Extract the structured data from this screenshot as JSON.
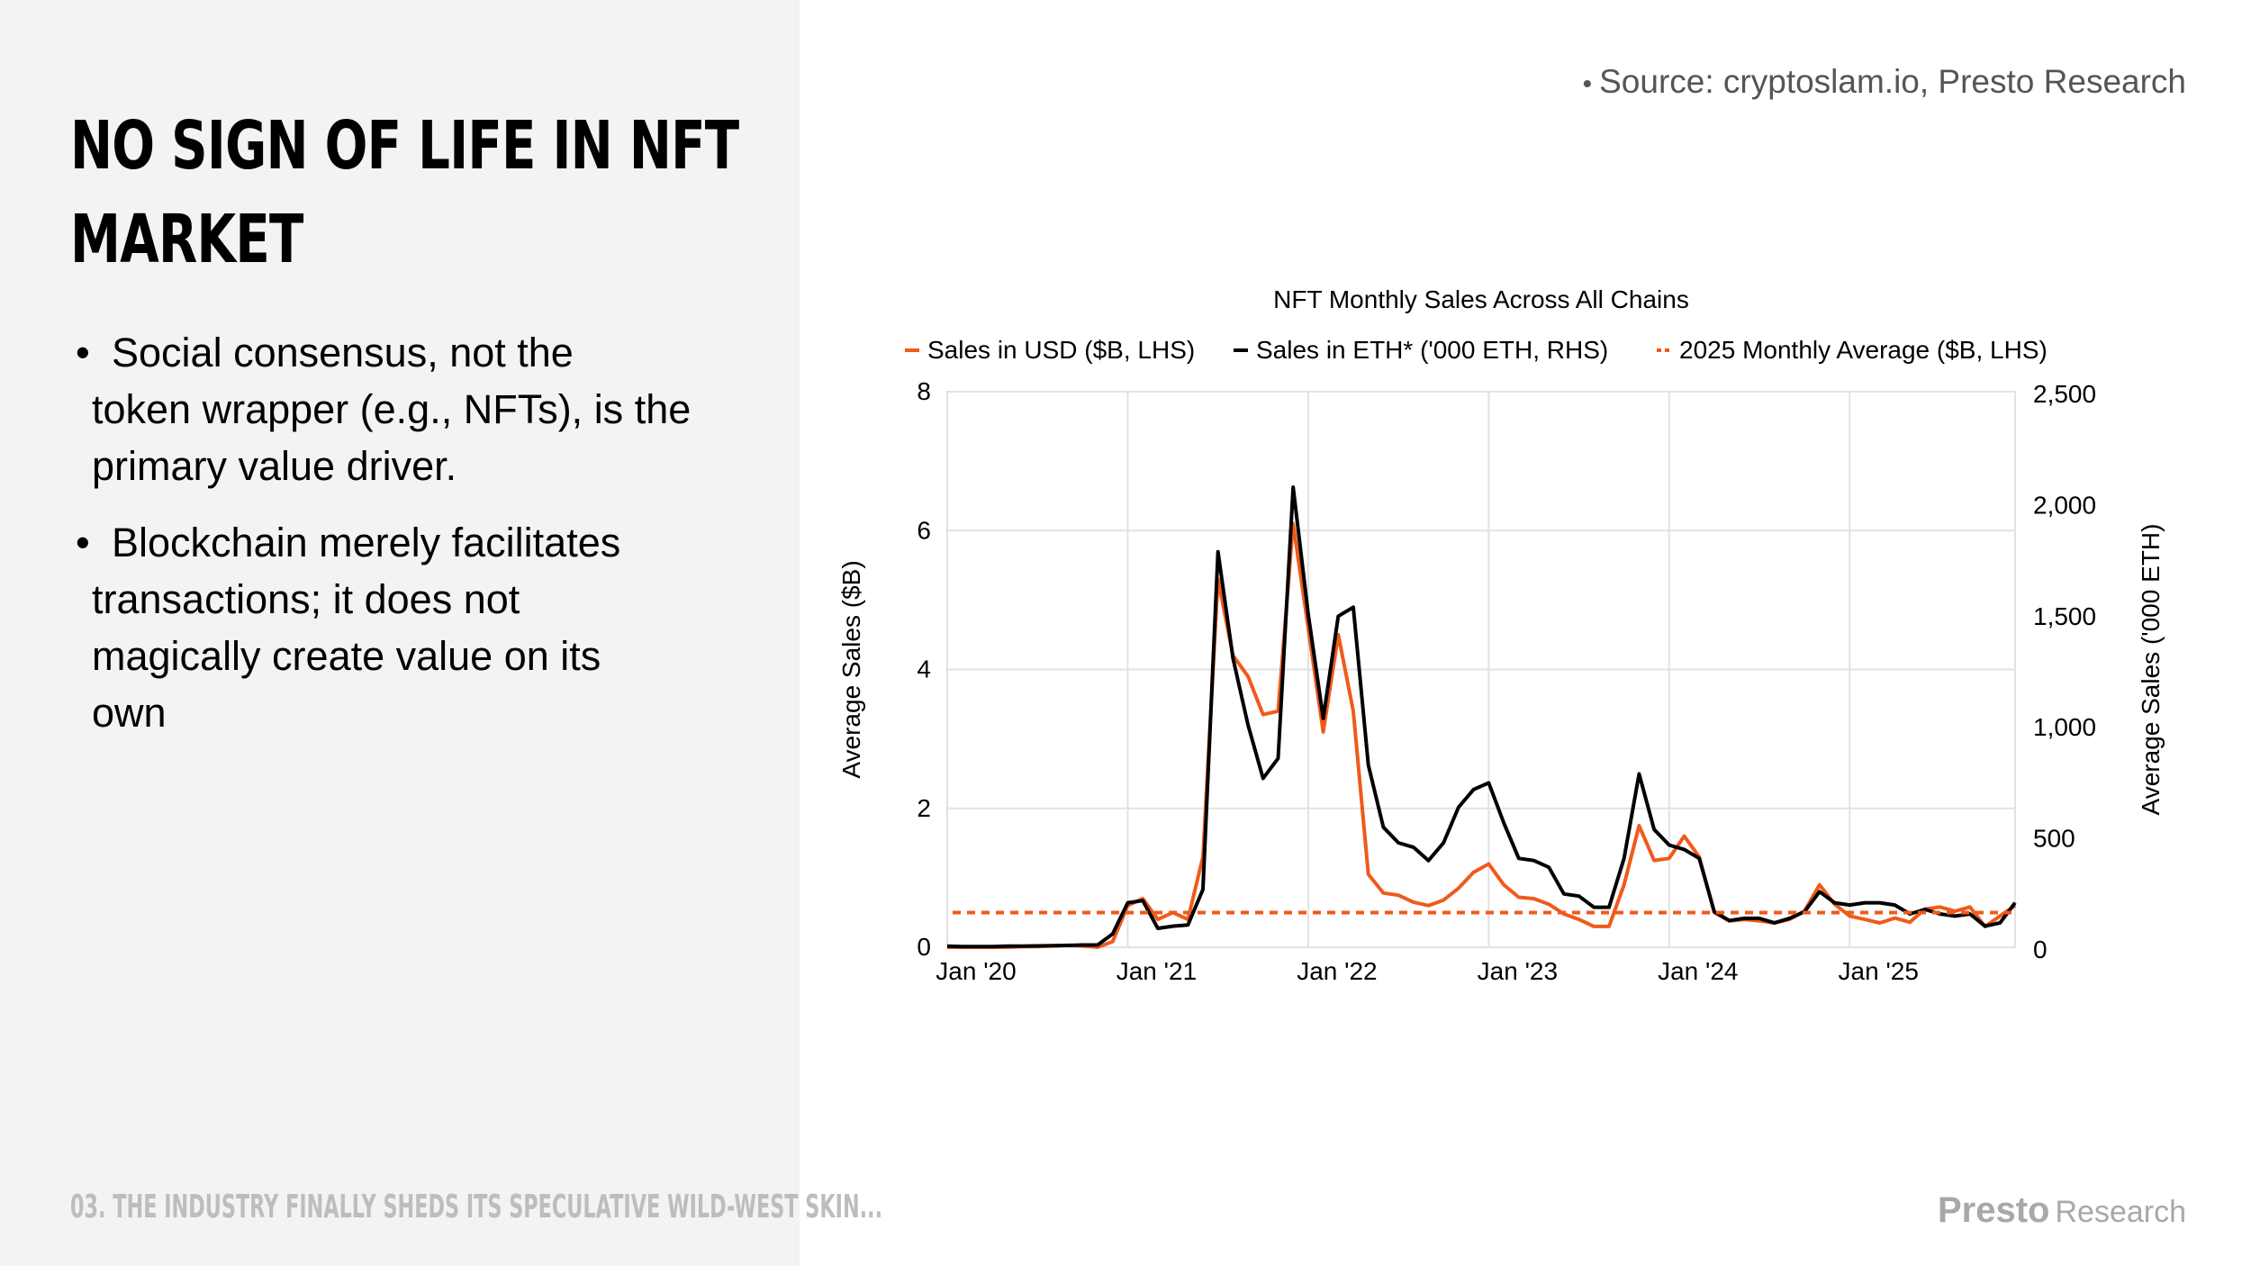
{
  "slide": {
    "title_line1": "NO SIGN OF LIFE IN NFT",
    "title_line2": "MARKET",
    "bullets": [
      {
        "line1": "Social consensus, not the",
        "line2": "token wrapper (e.g., NFTs), is the",
        "line3": "primary value driver.",
        "line4": ""
      },
      {
        "line1": "Blockchain merely facilitates",
        "line2": "transactions; it does not",
        "line3": "magically create value on its",
        "line4": "own"
      }
    ],
    "bullet_symbol": "•",
    "source": "Source: cryptoslam.io, Presto Research",
    "source_bullet": "•",
    "footer": "03. THE INDUSTRY FINALLY SHEDS ITS SPECULATIVE WILD-WEST SKIN...",
    "logo_brand": "Presto",
    "logo_sub": "Research"
  },
  "colors": {
    "usd": "#f05a1a",
    "eth": "#000000",
    "avg": "#f05a1a",
    "grid": "#e2e2e2",
    "left_panel": "#f3f3f3"
  },
  "chart_data": {
    "type": "line",
    "title": "NFT Monthly Sales Across All Chains",
    "ylabel": "Average Sales ($B)",
    "ylabel_right": "Average Sales ('000 ETH)",
    "ylim": [
      0,
      8
    ],
    "ylim_right": [
      0,
      2500
    ],
    "yticks": [
      0,
      2,
      4,
      6,
      8
    ],
    "yticks_right": [
      0,
      500,
      1000,
      1500,
      2000,
      2500
    ],
    "ytick_labels_right": [
      "0",
      "500",
      "1,000",
      "1,500",
      "2,000",
      "2,500"
    ],
    "xtick_labels": [
      "Jan '20",
      "Jan '21",
      "Jan '22",
      "Jan '23",
      "Jan '24",
      "Jan '25"
    ],
    "months": 72,
    "grid": true,
    "legend_position": "top",
    "series": [
      {
        "name": "Sales in USD ($B, LHS)",
        "axis": "left",
        "style": "solid",
        "values": [
          0.0,
          0.0,
          0.0,
          0.0,
          0.0,
          0.01,
          0.01,
          0.02,
          0.03,
          0.02,
          0.0,
          0.08,
          0.6,
          0.7,
          0.4,
          0.5,
          0.4,
          1.3,
          5.3,
          4.2,
          3.9,
          3.35,
          3.4,
          6.1,
          4.6,
          3.1,
          4.5,
          3.4,
          1.05,
          0.78,
          0.75,
          0.65,
          0.6,
          0.68,
          0.85,
          1.08,
          1.2,
          0.9,
          0.72,
          0.7,
          0.62,
          0.48,
          0.4,
          0.3,
          0.3,
          0.9,
          1.75,
          1.25,
          1.28,
          1.6,
          1.3,
          0.5,
          0.38,
          0.4,
          0.38,
          0.35,
          0.4,
          0.52,
          0.9,
          0.62,
          0.45,
          0.4,
          0.35,
          0.42,
          0.36,
          0.55,
          0.58,
          0.52,
          0.58,
          0.3,
          0.45,
          0.6
        ]
      },
      {
        "name": "Sales in ETH* ('000 ETH, RHS)",
        "axis": "right",
        "style": "solid",
        "values": [
          5,
          3,
          3,
          3,
          5,
          5,
          6,
          7,
          8,
          10,
          10,
          60,
          200,
          210,
          85,
          95,
          100,
          260,
          1780,
          1300,
          1000,
          760,
          850,
          2070,
          1500,
          1030,
          1490,
          1530,
          820,
          540,
          470,
          450,
          390,
          470,
          630,
          710,
          740,
          560,
          400,
          390,
          360,
          240,
          230,
          180,
          180,
          400,
          780,
          530,
          460,
          440,
          400,
          160,
          120,
          130,
          130,
          110,
          130,
          160,
          250,
          200,
          190,
          200,
          200,
          190,
          150,
          170,
          150,
          140,
          150,
          95,
          110,
          200
        ]
      },
      {
        "name": "2025 Monthly Average ($B, LHS)",
        "axis": "left",
        "style": "dashed",
        "values": [
          0.5,
          0.5
        ]
      }
    ]
  }
}
